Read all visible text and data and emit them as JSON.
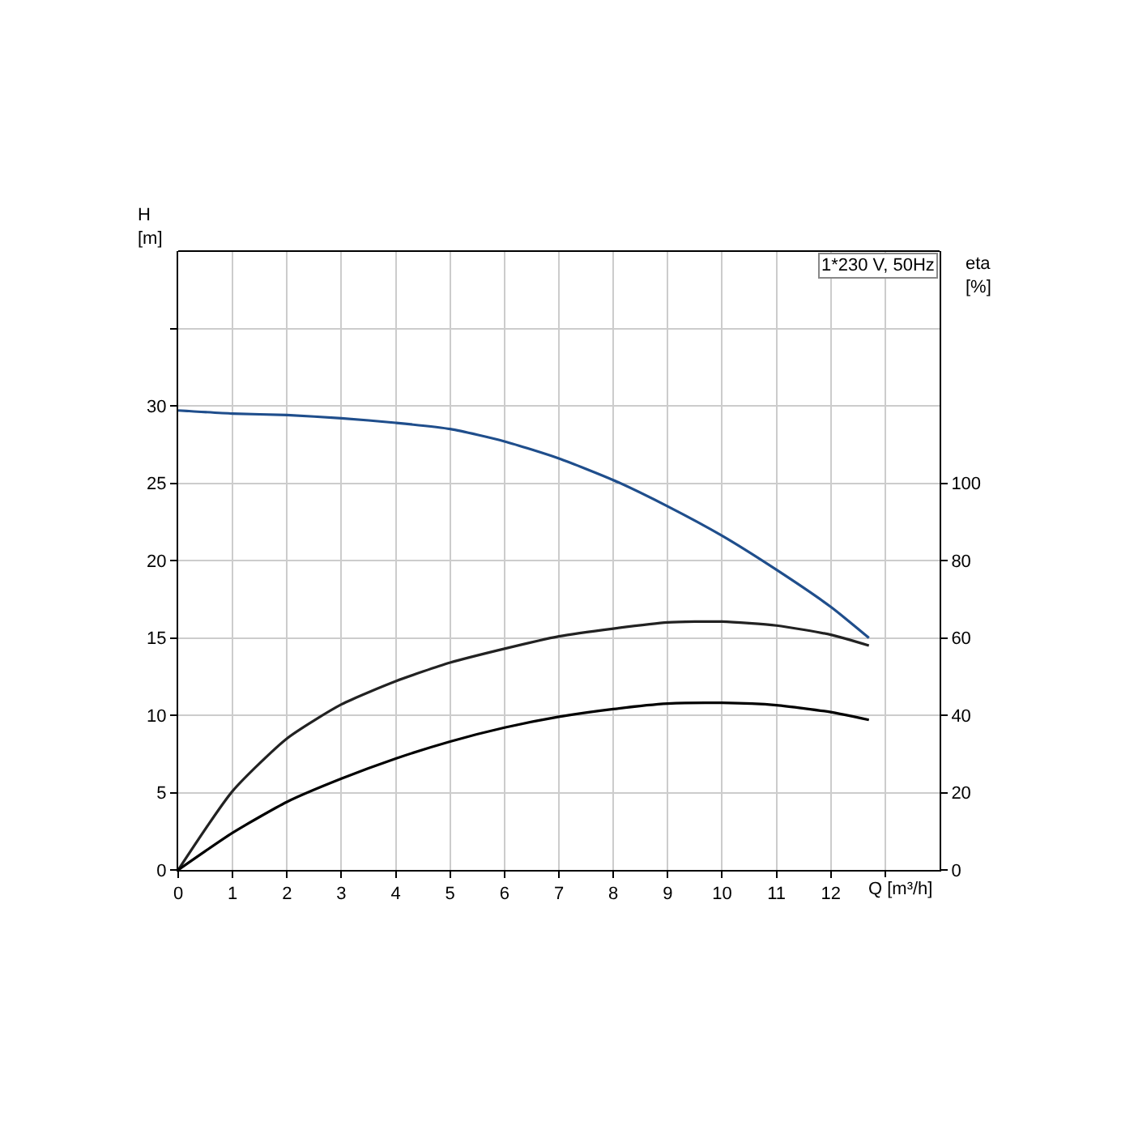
{
  "chart_data": {
    "type": "line",
    "xlabel": "Q [m³/h]",
    "ylabel": "H\n[m]",
    "y2label": "eta\n[%]",
    "annotations": [
      "1*230 V, 50Hz"
    ],
    "x": [
      0,
      1,
      2,
      3,
      4,
      5,
      6,
      7,
      8,
      9,
      10,
      11,
      12,
      12.7
    ],
    "series": [
      {
        "color": "#1f4e8c",
        "values": [
          29.7,
          29.5,
          29.4,
          29.2,
          28.9,
          28.5,
          27.7,
          26.6,
          25.2,
          23.5,
          21.6,
          19.4,
          17.0,
          15.0
        ]
      },
      {
        "color": "#222222",
        "axis": "y2",
        "values": [
          0,
          20.4,
          34,
          42.8,
          48.8,
          53.6,
          57.2,
          60.4,
          62.4,
          64,
          64.2,
          63.2,
          60.8,
          58
        ]
      },
      {
        "color": "#000000",
        "axis": "y2",
        "values": [
          0,
          9.6,
          17.6,
          23.6,
          28.8,
          33.2,
          36.8,
          39.6,
          41.6,
          43,
          43.2,
          42.6,
          40.8,
          38.8
        ]
      }
    ],
    "xlim": [
      0,
      14
    ],
    "xticks": [
      0,
      1,
      2,
      3,
      4,
      5,
      6,
      7,
      8,
      9,
      10,
      11,
      12,
      {
        "value": 13,
        "label": null
      }
    ],
    "ylim": [
      0,
      40
    ],
    "yticks": [
      0,
      5,
      10,
      15,
      20,
      25,
      30,
      {
        "value": 35,
        "label": null
      }
    ],
    "y2lim": [
      0,
      160
    ],
    "y2ticks": [
      0,
      20,
      40,
      60,
      80,
      100
    ],
    "grid": true,
    "marker": "none",
    "line_style": "solid"
  }
}
